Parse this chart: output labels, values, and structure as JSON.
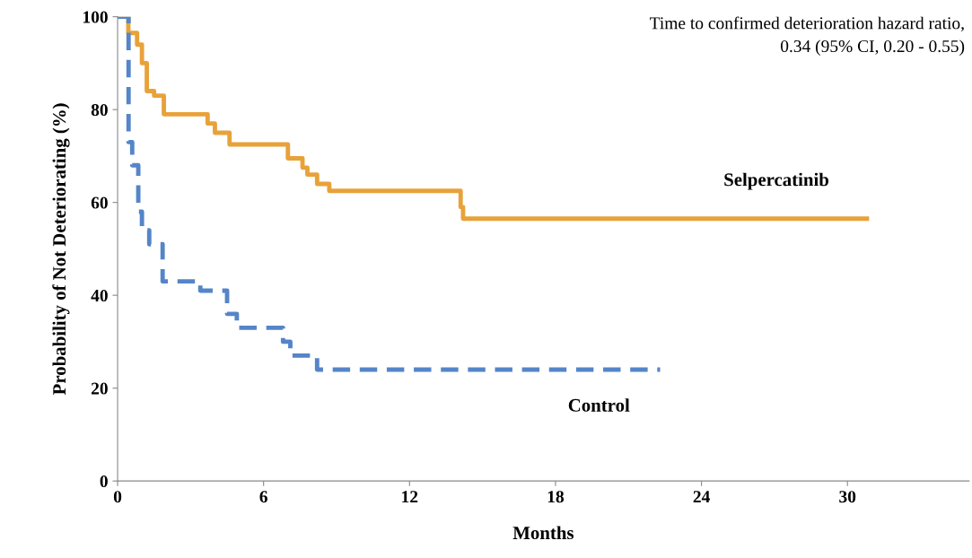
{
  "chart_data": {
    "type": "step",
    "xlabel": "Months",
    "ylabel": "Probability of Not Deteriorating (%)",
    "annotations": [
      "Time to confirmed deterioration hazard ratio,\n0.34 (95% CI, 0.20 - 0.55)"
    ],
    "xlim": [
      0,
      35
    ],
    "xticks": [
      0,
      6,
      12,
      18,
      24,
      30
    ],
    "ylim": [
      0,
      100
    ],
    "yticks": [
      0,
      20,
      40,
      60,
      80,
      100
    ],
    "grid": false,
    "legend": false,
    "series": [
      {
        "name": "Selpercatinib",
        "color": "#e8a23a",
        "line_style": "solid",
        "x": [
          0,
          0.44,
          0.8,
          1.0,
          1.2,
          1.5,
          1.9,
          3.7,
          4.0,
          4.6,
          7.0,
          7.6,
          7.8,
          8.2,
          8.7,
          14.1,
          14.2,
          30.8
        ],
        "values": [
          100,
          96.5,
          94,
          90,
          84,
          83,
          79,
          77,
          75,
          72.5,
          69.5,
          67.5,
          66,
          64,
          62.5,
          59,
          56.5,
          56.5
        ]
      },
      {
        "name": "Control",
        "color": "#5585c8",
        "line_style": "dashed",
        "x": [
          0,
          0.45,
          0.6,
          0.85,
          1.0,
          1.3,
          1.85,
          3.4,
          4.5,
          4.9,
          6.8,
          7.1,
          8.2,
          22.3
        ],
        "values": [
          100,
          73,
          68,
          58,
          54,
          51,
          43,
          41,
          36,
          33,
          30,
          27,
          24,
          24
        ]
      }
    ]
  }
}
